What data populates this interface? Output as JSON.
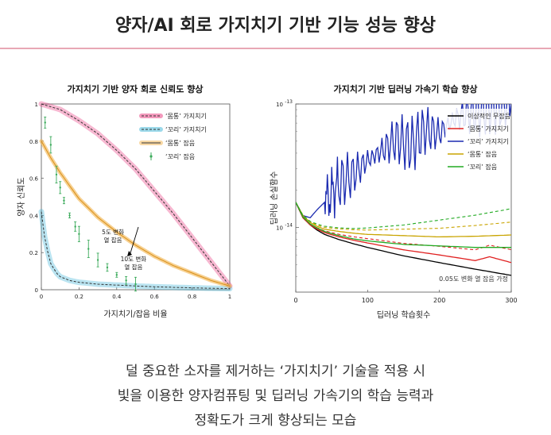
{
  "header": {
    "title": "양자/AI 회로 가지치기 기반 기능 성능 향상"
  },
  "caption": {
    "line1": "덜 중요한 소자를 제거하는 ‘가지치기’ 기술을 적용 시",
    "line2": "빛을 이용한 양자컴퓨팅 및 딥러닝 가속기의 학습 능력과",
    "line3": "정확도가 크게 향상되는 모습"
  },
  "chart_data": [
    {
      "type": "line",
      "title": "가지치기 기반 양자 회로 신뢰도 향상",
      "xlabel": "가지치기/잡음 비율",
      "ylabel": "양자 신뢰도",
      "xlim": [
        0,
        1
      ],
      "ylim": [
        0,
        1
      ],
      "xticks": [
        "0",
        "0.2",
        "0.4",
        "0.6",
        "0.8",
        "1"
      ],
      "yticks": [
        "0",
        "0.2",
        "0.4",
        "0.6",
        "0.8",
        "1"
      ],
      "legend_position": "top-right",
      "series": [
        {
          "name": "‘몸통’ 가지치기",
          "color": "#e8337a",
          "style": "dashed-band",
          "x": [
            0,
            0.1,
            0.2,
            0.3,
            0.4,
            0.5,
            0.6,
            0.7,
            0.8,
            0.9,
            1.0
          ],
          "y": [
            1.0,
            0.97,
            0.91,
            0.84,
            0.75,
            0.65,
            0.53,
            0.41,
            0.28,
            0.15,
            0.02
          ]
        },
        {
          "name": "‘꼬리’ 가지치기",
          "color": "#3ab3d6",
          "style": "dashed-band",
          "x": [
            0,
            0.02,
            0.05,
            0.08,
            0.1,
            0.15,
            0.2,
            0.3,
            0.4,
            0.5,
            0.6,
            0.7,
            0.8,
            0.9,
            1.0
          ],
          "y": [
            0.42,
            0.26,
            0.14,
            0.09,
            0.07,
            0.05,
            0.04,
            0.03,
            0.025,
            0.02,
            0.016,
            0.013,
            0.01,
            0.008,
            0.006
          ]
        },
        {
          "name": "‘몸통’ 잡음",
          "color": "#f2b24a",
          "style": "band",
          "x": [
            0,
            0.05,
            0.1,
            0.15,
            0.2,
            0.3,
            0.4,
            0.5,
            0.6,
            0.7,
            0.8,
            0.9,
            1.0
          ],
          "y": [
            0.8,
            0.71,
            0.63,
            0.56,
            0.49,
            0.39,
            0.31,
            0.24,
            0.18,
            0.13,
            0.09,
            0.05,
            0.02
          ]
        },
        {
          "name": "‘꼬리’ 잡음",
          "color": "#3aaa5a",
          "style": "errorbar",
          "x": [
            0.02,
            0.05,
            0.08,
            0.1,
            0.12,
            0.15,
            0.18,
            0.2,
            0.25,
            0.3,
            0.35,
            0.4,
            0.45,
            0.5
          ],
          "y": [
            0.9,
            0.78,
            0.62,
            0.55,
            0.48,
            0.4,
            0.34,
            0.3,
            0.22,
            0.16,
            0.12,
            0.08,
            0.05,
            0.03
          ]
        }
      ],
      "annotations": [
        {
          "text": "5도 변화",
          "text2": "열 잡음",
          "x": 0.38,
          "y": 0.3
        },
        {
          "text": "10도 변화",
          "text2": "열 잡음",
          "x": 0.43,
          "y": 0.14
        }
      ]
    },
    {
      "type": "line",
      "title": "가지치기 기반 딥러닝 가속기 학습 향상",
      "xlabel": "딥러닝 학습횟수",
      "ylabel": "딥러닝 손실함수",
      "xlim": [
        0,
        300
      ],
      "yscale": "log",
      "ylim": [
        3e-15,
        1e-13
      ],
      "xticks": [
        "0",
        "100",
        "200",
        "300"
      ],
      "yticks": [
        {
          "value": 1e-13,
          "base": "10",
          "exp": "-13"
        },
        {
          "value": 1e-14,
          "base": "10",
          "exp": "-14"
        }
      ],
      "legend_position": "top-right",
      "note": "0.05도 변화 열 잡음 가정",
      "series": [
        {
          "name": "이상적인 무잡음",
          "color": "#000000",
          "x": [
            0,
            10,
            20,
            30,
            40,
            60,
            80,
            100,
            150,
            200,
            250,
            300
          ],
          "y": [
            1.6e-14,
            1.2e-14,
            1.05e-14,
            9.5e-15,
            8.8e-15,
            8e-15,
            7.4e-15,
            6.9e-15,
            5.9e-15,
            5.2e-15,
            4.6e-15,
            4.1e-15
          ]
        },
        {
          "name": "‘몸통’ 가지치기",
          "color": "#e02020",
          "x": [
            0,
            10,
            20,
            30,
            40,
            60,
            80,
            100,
            150,
            200,
            250,
            270,
            300
          ],
          "y": [
            1.6e-14,
            1.2e-14,
            1.05e-14,
            9.7e-15,
            9.1e-15,
            8.4e-15,
            7.9e-15,
            7.5e-15,
            6.6e-15,
            6e-15,
            5.4e-15,
            5.8e-15,
            5.2e-15
          ]
        },
        {
          "name": "‘꼬리’ 가지치기",
          "color": "#1a2ab0",
          "x": [
            0,
            10,
            20,
            30,
            40,
            50,
            60,
            80,
            100,
            120,
            140,
            160,
            180,
            200,
            220,
            240,
            260,
            280,
            300
          ],
          "y": [
            1.6e-14,
            1.25e-14,
            1.2e-14,
            1.4e-14,
            1.6e-14,
            1.9e-14,
            2.3e-14,
            2.7e-14,
            3.5e-14,
            4.2e-14,
            5.2e-14,
            4.6e-14,
            6.2e-14,
            5.8e-14,
            7.5e-14,
            8.5e-14,
            9e-14,
            9.5e-14,
            1e-13
          ]
        },
        {
          "name": "‘몸통’ 잡음",
          "color": "#c9a400",
          "x": [
            0,
            10,
            20,
            30,
            40,
            60,
            80,
            100,
            150,
            200,
            250,
            300
          ],
          "y": [
            1.6e-14,
            1.25e-14,
            1.1e-14,
            1.02e-14,
            9.7e-15,
            9.3e-15,
            9e-15,
            8.8e-15,
            8.6e-15,
            8.4e-15,
            8.5e-15,
            8.7e-15
          ]
        },
        {
          "name": "‘꼬리’ 잡음",
          "color": "#22aa22",
          "x": [
            0,
            10,
            20,
            30,
            40,
            60,
            80,
            100,
            150,
            200,
            250,
            300
          ],
          "y": [
            1.6e-14,
            1.22e-14,
            1.07e-14,
            9.9e-15,
            9.3e-15,
            8.6e-15,
            8.1e-15,
            7.8e-15,
            7.3e-15,
            7.1e-15,
            6.9e-15,
            6.9e-15
          ]
        }
      ]
    }
  ]
}
